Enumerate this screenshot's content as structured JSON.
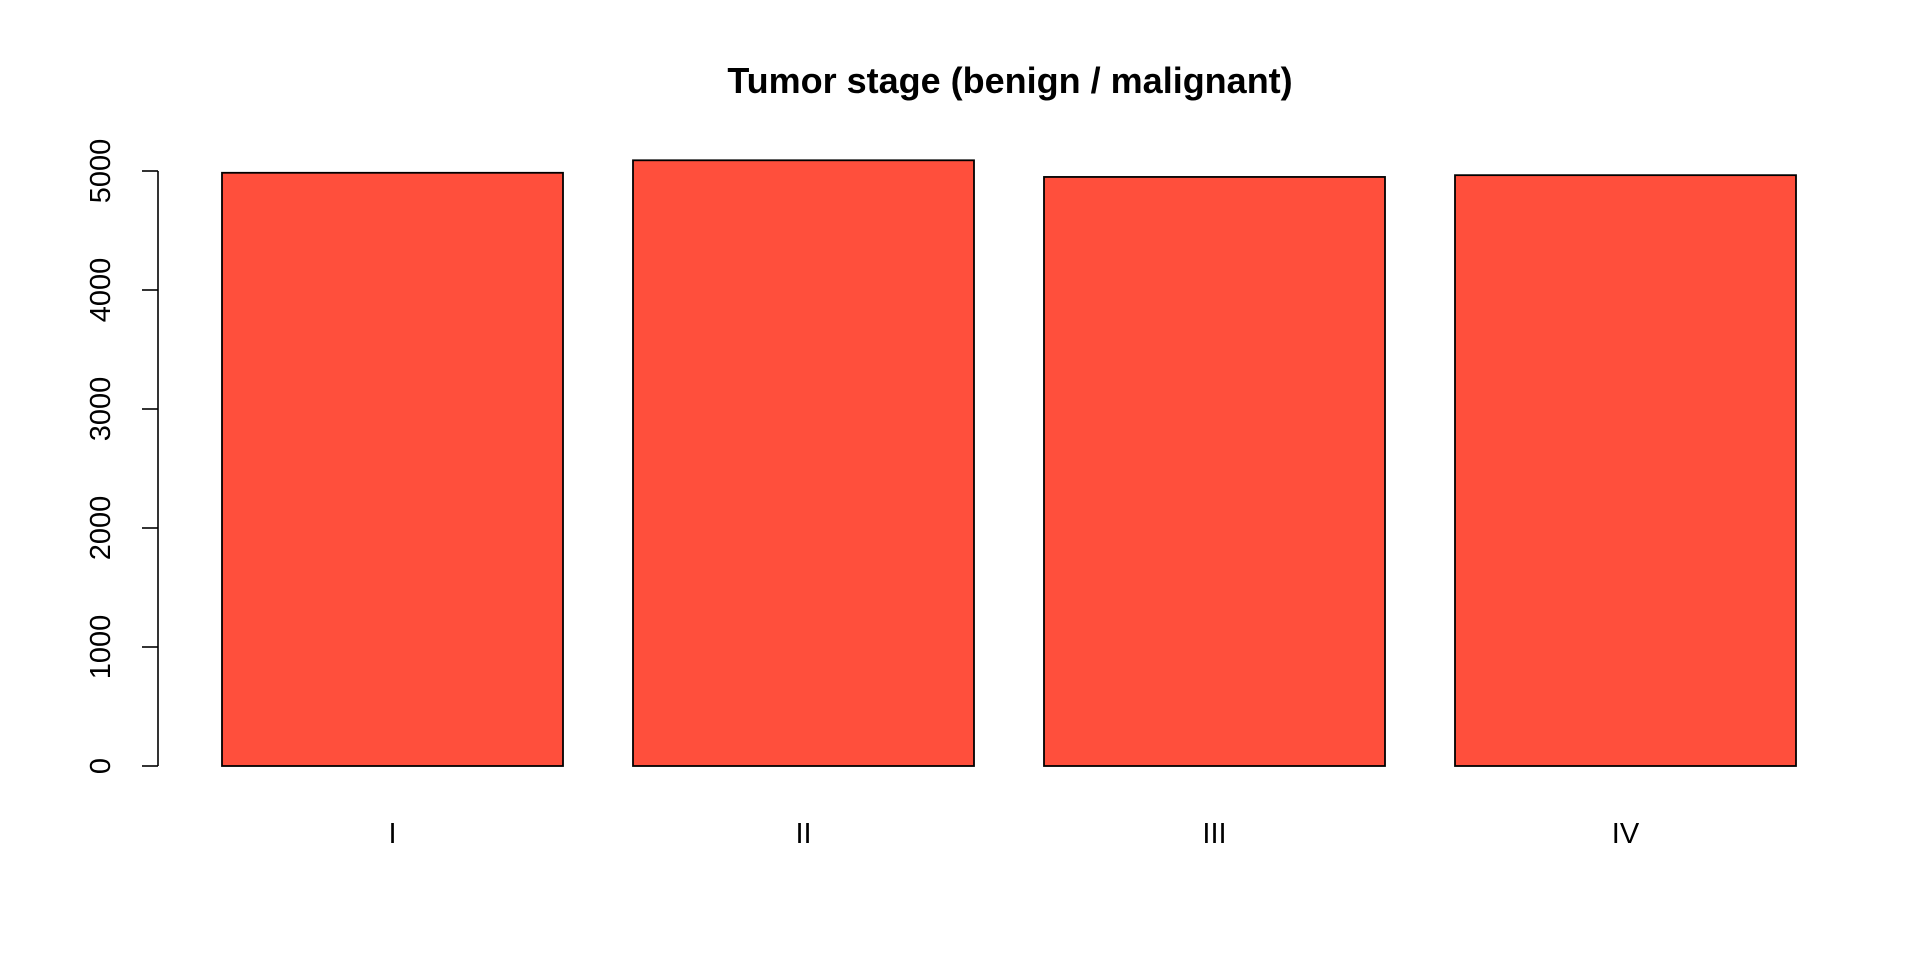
{
  "chart_data": {
    "type": "bar",
    "title": "Tumor stage (benign / malignant)",
    "xlabel": "",
    "ylabel": "",
    "categories": [
      "I",
      "II",
      "III",
      "IV"
    ],
    "values": [
      4985,
      5090,
      4950,
      4965
    ],
    "ylim": [
      0,
      5000
    ],
    "y_ticks": [
      0,
      1000,
      2000,
      3000,
      4000,
      5000
    ],
    "bar_color": "#FF4F3C",
    "bar_edge_color": "#000000",
    "grid": false,
    "legend": "none"
  }
}
